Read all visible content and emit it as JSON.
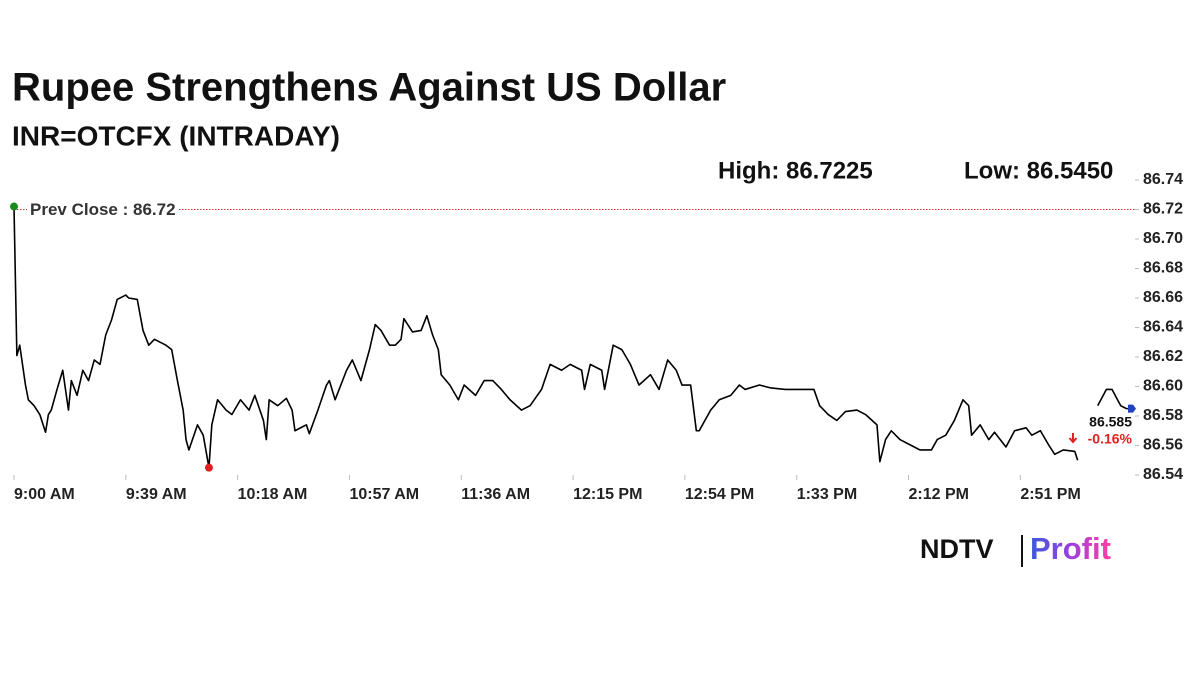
{
  "chart_data": {
    "type": "line",
    "title": "Rupee Strengthens Against US Dollar",
    "subtitle": "INR=OTCFX (INTRADAY)",
    "high_label": "High: 86.7225",
    "low_label": "Low: 86.5450",
    "last_label": "86.585",
    "change_label": "-0.16%",
    "color": "#000000",
    "reference_line": {
      "value": 86.72,
      "label": "Prev Close : 86.72",
      "color": "#e03030"
    },
    "xlim": [
      540,
      931
    ],
    "xticks": [
      {
        "value": 540,
        "label": "9:00 AM"
      },
      {
        "value": 579,
        "label": "9:39 AM"
      },
      {
        "value": 618,
        "label": "10:18 AM"
      },
      {
        "value": 657,
        "label": "10:57 AM"
      },
      {
        "value": 696,
        "label": "11:36 AM"
      },
      {
        "value": 735,
        "label": "12:15 PM"
      },
      {
        "value": 774,
        "label": "12:54 PM"
      },
      {
        "value": 813,
        "label": "1:33 PM"
      },
      {
        "value": 852,
        "label": "2:12 PM"
      },
      {
        "value": 891,
        "label": "2:51 PM"
      }
    ],
    "ylim": [
      86.54,
      86.74
    ],
    "yticks": [
      86.54,
      86.56,
      86.58,
      {
        "value": 86.6,
        "label": "86.60"
      },
      86.62,
      86.64,
      86.66,
      86.68,
      {
        "value": 86.7,
        "label": "86.70"
      },
      86.72,
      86.74
    ],
    "x": [
      540,
      541,
      542,
      544,
      545,
      547,
      549,
      551,
      552,
      553,
      555,
      557,
      559,
      560,
      562,
      564,
      566,
      568,
      570,
      572,
      574,
      576,
      579,
      580,
      583,
      585,
      587,
      589,
      593,
      595,
      597,
      599,
      600,
      601,
      604,
      606,
      608,
      609,
      611,
      614,
      616,
      619,
      622,
      624,
      627,
      628,
      629,
      632,
      635,
      637,
      638,
      642,
      643,
      646,
      649,
      650,
      652,
      656,
      658,
      661,
      664,
      666,
      668,
      671,
      673,
      675,
      676,
      679,
      682,
      684,
      686,
      688,
      689,
      692,
      695,
      697,
      701,
      704,
      707,
      710,
      713,
      717,
      720,
      724,
      727,
      731,
      734,
      738,
      739,
      741,
      745,
      746,
      749,
      752,
      755,
      758,
      762,
      765,
      768,
      771,
      773,
      776,
      778,
      779,
      783,
      786,
      790,
      793,
      795,
      800,
      804,
      809,
      814,
      819,
      821,
      824,
      827,
      830,
      834,
      837,
      841,
      842,
      844,
      846,
      849,
      853,
      856,
      860,
      862,
      865,
      868,
      871,
      873,
      874,
      877,
      880,
      882,
      886,
      889,
      893,
      895,
      898,
      901,
      903,
      906,
      910,
      911,
      915,
      918,
      921,
      923,
      926,
      928,
      931
    ],
    "values": [
      86.722,
      86.621,
      86.628,
      86.601,
      86.591,
      86.587,
      86.581,
      86.569,
      86.581,
      86.584,
      86.598,
      86.611,
      86.584,
      86.604,
      86.594,
      86.611,
      86.604,
      86.618,
      86.615,
      86.635,
      86.645,
      86.659,
      86.662,
      86.66,
      86.659,
      86.638,
      86.628,
      86.632,
      86.628,
      86.625,
      86.604,
      86.584,
      86.564,
      86.557,
      86.574,
      86.567,
      86.545,
      86.574,
      86.591,
      86.584,
      86.581,
      86.591,
      86.584,
      86.594,
      86.577,
      86.564,
      86.591,
      86.587,
      86.592,
      86.584,
      86.57,
      86.574,
      86.568,
      86.584,
      86.601,
      86.604,
      86.591,
      86.611,
      86.618,
      86.604,
      86.625,
      86.642,
      86.638,
      86.628,
      86.628,
      86.632,
      86.646,
      86.637,
      86.638,
      86.648,
      86.635,
      86.625,
      86.608,
      86.601,
      86.591,
      86.601,
      86.594,
      86.604,
      86.604,
      86.598,
      86.591,
      86.584,
      86.587,
      86.598,
      86.615,
      86.611,
      86.615,
      86.611,
      86.598,
      86.615,
      86.611,
      86.598,
      86.628,
      86.625,
      86.615,
      86.601,
      86.608,
      86.598,
      86.618,
      86.611,
      86.601,
      86.601,
      86.57,
      86.57,
      86.584,
      86.591,
      86.594,
      86.601,
      86.598,
      86.601,
      86.599,
      86.598,
      86.598,
      86.598,
      86.587,
      86.581,
      86.577,
      86.583,
      86.584,
      86.581,
      86.574,
      86.549,
      86.564,
      86.57,
      86.564,
      86.56,
      86.557,
      86.557,
      86.564,
      86.567,
      86.577,
      86.591,
      86.587,
      86.567,
      86.574,
      86.564,
      86.569,
      86.559,
      86.57,
      86.572,
      86.567,
      86.57,
      86.56,
      86.554,
      86.557,
      86.556,
      86.55,
      null,
      86.587,
      86.598,
      86.598,
      86.587,
      86.585,
      86.585
    ],
    "logo": {
      "brand": "NDTV",
      "product": "Profit"
    }
  }
}
